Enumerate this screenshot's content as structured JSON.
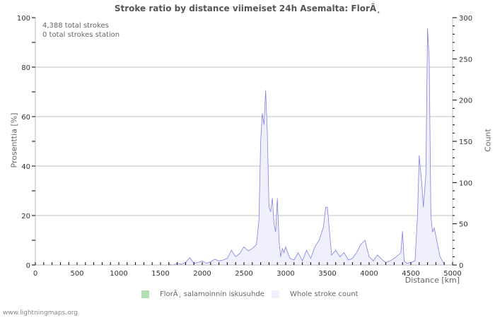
{
  "title": "Stroke ratio by distance viimeiset 24h Asemalta: FlorÃ¸",
  "info": {
    "total_strokes": "4,388 total strokes",
    "station_strokes": "0 total strokes station"
  },
  "axes": {
    "left_label": "Prosenttia   [%]",
    "right_label": "Count",
    "x_label": "Distance   [km]"
  },
  "legend": {
    "item1": "FlorÃ¸ salamoinnin iskusuhde",
    "item2": "Whole stroke count"
  },
  "footer": "www.lightningmaps.org",
  "colors": {
    "ratio_fill": "#b3e0b3",
    "count_fill": "#f0f0fc",
    "count_line": "#8080e0",
    "grid": "#c0c0c0"
  },
  "chart_data": {
    "type": "area",
    "title": "Stroke ratio by distance viimeiset 24h Asemalta: FlorÃ¸",
    "xlabel": "Distance [km]",
    "ylabel_left": "Prosenttia [%]",
    "ylabel_right": "Count",
    "x_ticks": [
      0,
      500,
      1000,
      1500,
      2000,
      2500,
      3000,
      3500,
      4000,
      4500,
      5000
    ],
    "y_left_ticks": [
      0,
      20,
      40,
      60,
      80,
      100
    ],
    "y_right_ticks": [
      0,
      50,
      100,
      150,
      200,
      250,
      300
    ],
    "xlim": [
      0,
      5000
    ],
    "ylim_left": [
      0,
      100
    ],
    "ylim_right": [
      0,
      300
    ],
    "grid": true,
    "legend_position": "bottom",
    "series": [
      {
        "name": "FlorÃ¸ salamoinnin iskusuhde",
        "axis": "left",
        "x": [],
        "values": []
      },
      {
        "name": "Whole stroke count",
        "axis": "right",
        "x": [
          1600,
          1650,
          1700,
          1750,
          1800,
          1850,
          1900,
          1950,
          2000,
          2050,
          2100,
          2150,
          2200,
          2250,
          2300,
          2350,
          2400,
          2450,
          2500,
          2550,
          2600,
          2650,
          2680,
          2700,
          2720,
          2740,
          2760,
          2780,
          2800,
          2820,
          2840,
          2860,
          2880,
          2900,
          2920,
          2940,
          2960,
          2980,
          3000,
          3050,
          3100,
          3150,
          3200,
          3250,
          3300,
          3350,
          3400,
          3450,
          3480,
          3500,
          3550,
          3600,
          3650,
          3700,
          3750,
          3800,
          3850,
          3900,
          3950,
          4000,
          4050,
          4100,
          4150,
          4200,
          4250,
          4300,
          4350,
          4380,
          4400,
          4420,
          4450,
          4500,
          4550,
          4580,
          4600,
          4630,
          4650,
          4680,
          4700,
          4720,
          4740,
          4760,
          4780,
          4800,
          4850,
          4900
        ],
        "values": [
          1,
          0,
          2,
          1,
          3,
          9,
          2,
          3,
          5,
          2,
          4,
          7,
          5,
          6,
          8,
          18,
          10,
          14,
          22,
          17,
          20,
          25,
          55,
          150,
          184,
          170,
          212,
          160,
          70,
          65,
          81,
          50,
          40,
          81,
          30,
          10,
          20,
          15,
          22,
          8,
          6,
          15,
          5,
          18,
          8,
          22,
          30,
          45,
          70,
          70,
          12,
          18,
          10,
          15,
          6,
          8,
          15,
          25,
          30,
          10,
          5,
          12,
          7,
          3,
          5,
          8,
          12,
          15,
          41,
          5,
          2,
          3,
          5,
          60,
          133,
          100,
          70,
          110,
          287,
          250,
          60,
          40,
          45,
          35,
          10,
          1
        ]
      }
    ]
  }
}
